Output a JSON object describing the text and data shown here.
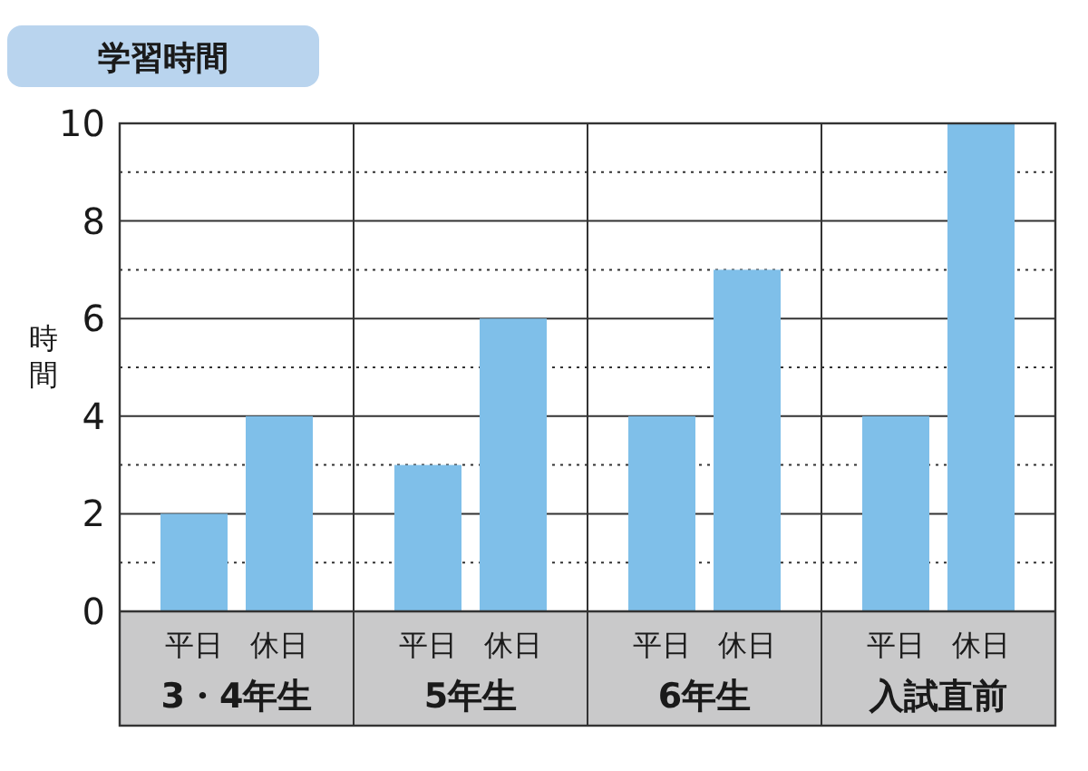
{
  "chart_data": {
    "type": "bar",
    "title": "学習時間",
    "ylabel": "時間",
    "categories": [
      "3・4年生",
      "5年生",
      "6年生",
      "入試直前"
    ],
    "series": [
      {
        "name": "平日",
        "color": "#7fbfe9",
        "values": [
          2,
          3,
          4,
          4
        ]
      },
      {
        "name": "休日",
        "color": "#7fbfe9",
        "values": [
          4,
          6,
          7,
          10
        ]
      }
    ],
    "ylim": [
      0,
      10
    ],
    "yticks": [
      0,
      {
        "value": 1,
        "label": null
      },
      2,
      {
        "value": 3,
        "label": null
      },
      4,
      {
        "value": 5,
        "label": null
      },
      6,
      {
        "value": 7,
        "label": null
      },
      8,
      {
        "value": 9,
        "label": null
      },
      10
    ],
    "grid": true
  }
}
